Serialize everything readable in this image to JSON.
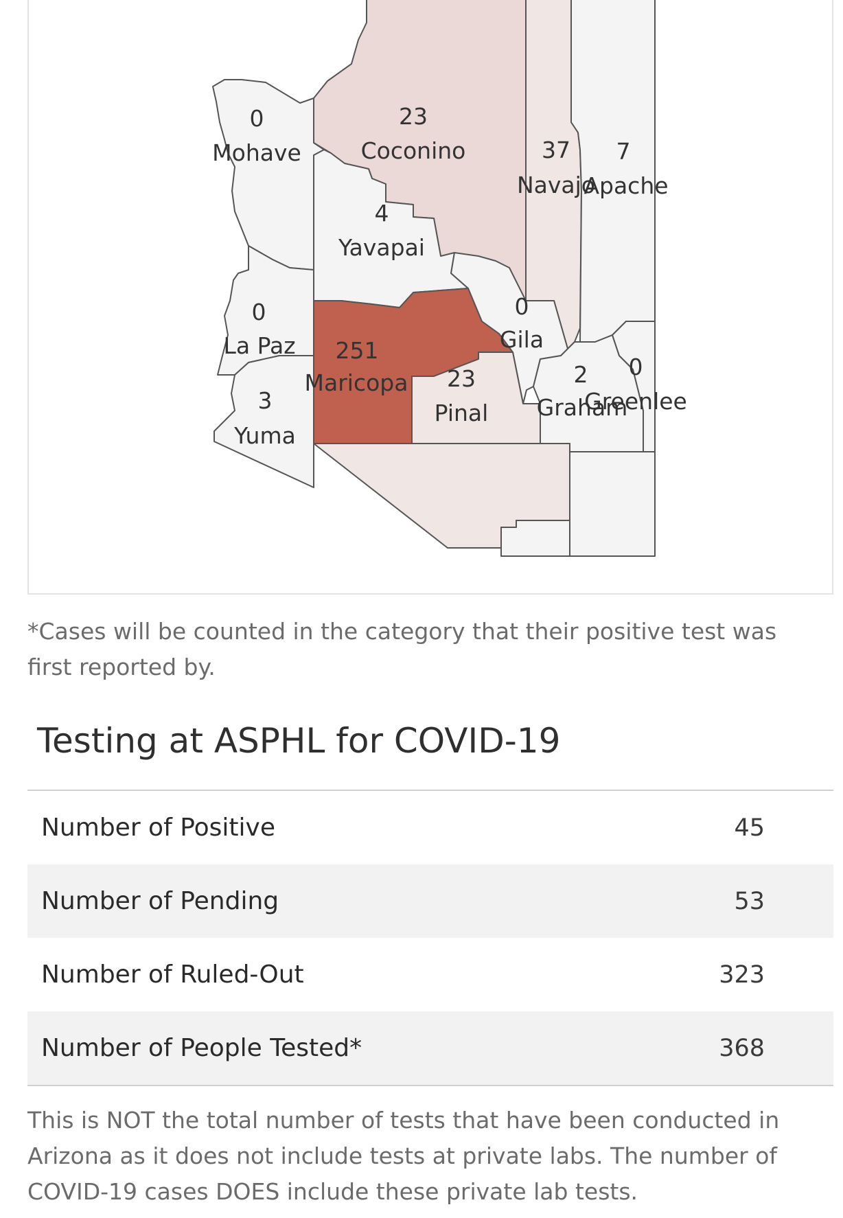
{
  "map": {
    "colors": {
      "high": "#c0604f",
      "medium": "#ead9d6",
      "low": "#f0e6e4",
      "none": "#f4f4f4",
      "border": "#555555"
    },
    "counties": [
      {
        "name": "Mohave",
        "count": "0"
      },
      {
        "name": "Coconino",
        "count": "23"
      },
      {
        "name": "Navajo",
        "count": "37"
      },
      {
        "name": "Apache",
        "count": "7"
      },
      {
        "name": "Yavapai",
        "count": "4"
      },
      {
        "name": "La Paz",
        "count": "0"
      },
      {
        "name": "Maricopa",
        "count": "251"
      },
      {
        "name": "Gila",
        "count": "0"
      },
      {
        "name": "Pinal",
        "count": "23"
      },
      {
        "name": "Yuma",
        "count": "3"
      },
      {
        "name": "Graham",
        "count": "2"
      },
      {
        "name": "Greenlee",
        "count": "0"
      }
    ]
  },
  "footnote": "*Cases will be counted in the category that their positive test was first reported by.",
  "testing": {
    "title": "Testing at ASPHL for COVID-19",
    "rows": [
      {
        "label": "Number of Positive",
        "value": "45"
      },
      {
        "label": "Number of Pending",
        "value": "53"
      },
      {
        "label": "Number of Ruled-Out",
        "value": "323"
      },
      {
        "label": "Number of People Tested*",
        "value": "368"
      }
    ]
  },
  "disclaimer": "This is NOT the total number of tests that have been conducted in Arizona as it does not include tests at private labs. The number of COVID-19 cases DOES include these private lab tests."
}
